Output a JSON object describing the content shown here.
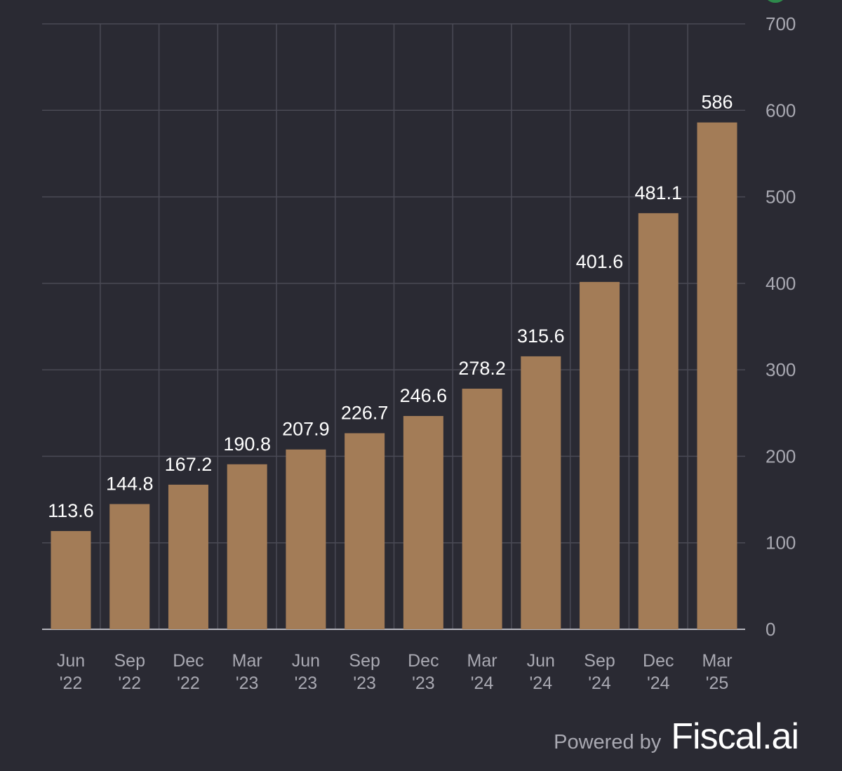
{
  "chart_data": {
    "type": "bar",
    "categories": [
      [
        "Jun",
        "'22"
      ],
      [
        "Sep",
        "'22"
      ],
      [
        "Dec",
        "'22"
      ],
      [
        "Mar",
        "'23"
      ],
      [
        "Jun",
        "'23"
      ],
      [
        "Sep",
        "'23"
      ],
      [
        "Dec",
        "'23"
      ],
      [
        "Mar",
        "'24"
      ],
      [
        "Jun",
        "'24"
      ],
      [
        "Sep",
        "'24"
      ],
      [
        "Dec",
        "'24"
      ],
      [
        "Mar",
        "'25"
      ]
    ],
    "values": [
      113.6,
      144.8,
      167.2,
      190.8,
      207.9,
      226.7,
      246.6,
      278.2,
      315.6,
      401.6,
      481.1,
      586
    ],
    "value_labels": [
      "113.6",
      "144.8",
      "167.2",
      "190.8",
      "207.9",
      "226.7",
      "246.6",
      "278.2",
      "315.6",
      "401.6",
      "481.1",
      "586"
    ],
    "ylim": [
      0,
      700
    ],
    "yticks": [
      0,
      100,
      200,
      300,
      400,
      500,
      600,
      700
    ],
    "y_axis_side": "right",
    "grid": true,
    "legend": "none",
    "bar_color": "#a37c57",
    "background_color": "#2a2a33"
  },
  "footer": {
    "powered_by": "Powered by",
    "brand": "Fiscal.ai"
  }
}
